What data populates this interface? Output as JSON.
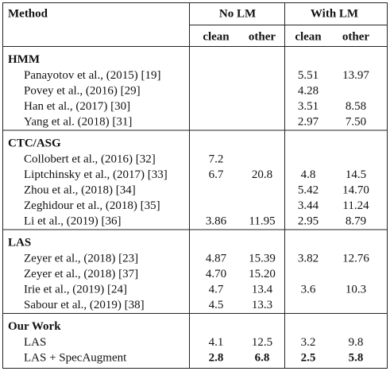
{
  "header": {
    "method": "Method",
    "groups": [
      "No LM",
      "With LM"
    ],
    "subcolumns": [
      "clean",
      "other",
      "clean",
      "other"
    ]
  },
  "sections": [
    {
      "title": "HMM",
      "rows": [
        {
          "method": "Panayotov et al., (2015) [19]",
          "cells": [
            null,
            null,
            "5.51",
            "13.97"
          ]
        },
        {
          "method": "Povey et al., (2016) [29]",
          "cells": [
            null,
            null,
            "4.28",
            null
          ]
        },
        {
          "method": "Han et al., (2017) [30]",
          "cells": [
            null,
            null,
            "3.51",
            "8.58"
          ]
        },
        {
          "method": "Yang et al. (2018) [31]",
          "cells": [
            null,
            null,
            "2.97",
            "7.50"
          ]
        }
      ]
    },
    {
      "title": "CTC/ASG",
      "rows": [
        {
          "method": "Collobert et al., (2016) [32]",
          "cells": [
            "7.2",
            null,
            null,
            null
          ]
        },
        {
          "method": "Liptchinsky et al., (2017) [33]",
          "cells": [
            "6.7",
            "20.8",
            "4.8",
            "14.5"
          ]
        },
        {
          "method": "Zhou et al., (2018) [34]",
          "cells": [
            null,
            null,
            "5.42",
            "14.70"
          ]
        },
        {
          "method": "Zeghidour et al., (2018) [35]",
          "cells": [
            null,
            null,
            "3.44",
            "11.24"
          ]
        },
        {
          "method": "Li et al., (2019) [36]",
          "cells": [
            "3.86",
            "11.95",
            "2.95",
            "8.79"
          ]
        }
      ]
    },
    {
      "title": "LAS",
      "rows": [
        {
          "method": "Zeyer et al., (2018) [23]",
          "cells": [
            "4.87",
            "15.39",
            "3.82",
            "12.76"
          ]
        },
        {
          "method": "Zeyer et al., (2018) [37]",
          "cells": [
            "4.70",
            "15.20",
            null,
            null
          ]
        },
        {
          "method": "Irie et al., (2019) [24]",
          "cells": [
            "4.7",
            "13.4",
            "3.6",
            "10.3"
          ]
        },
        {
          "method": "Sabour et al., (2019) [38]",
          "cells": [
            "4.5",
            "13.3",
            null,
            null
          ]
        }
      ]
    },
    {
      "title": "Our Work",
      "rows": [
        {
          "method": "LAS",
          "cells": [
            "4.1",
            "12.5",
            "3.2",
            "9.8"
          ]
        },
        {
          "method": "LAS + SpecAugment",
          "cells": [
            "2.8",
            "6.8",
            "2.5",
            "5.8"
          ],
          "bold": true
        }
      ]
    }
  ]
}
